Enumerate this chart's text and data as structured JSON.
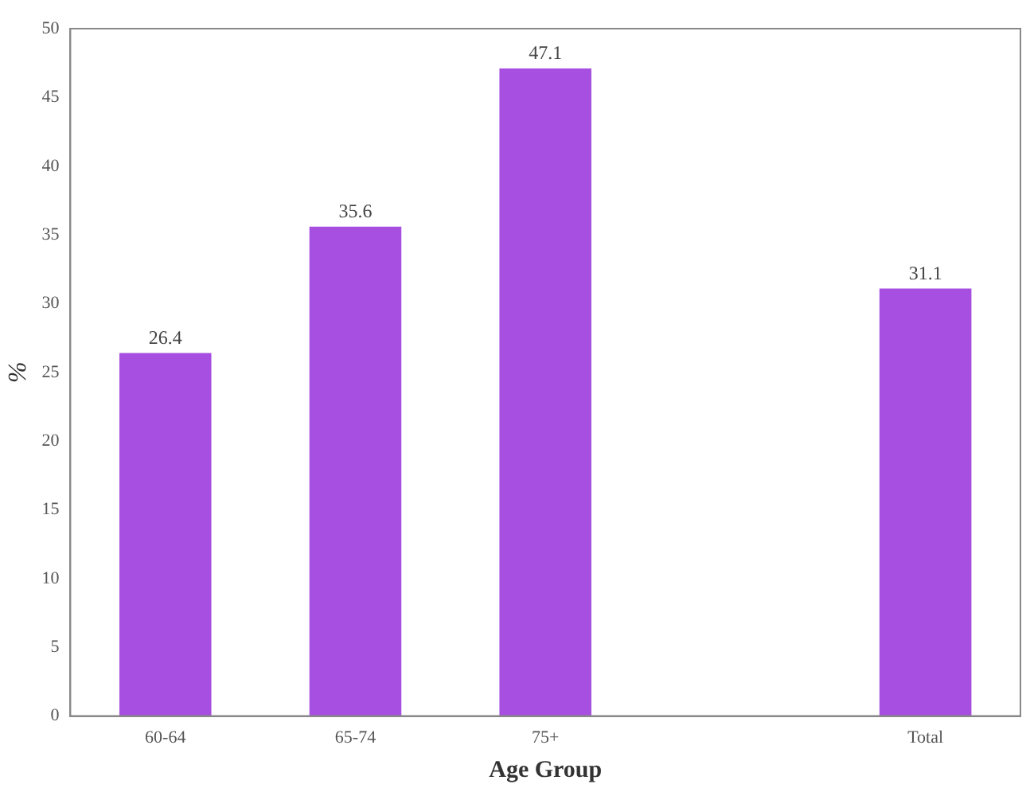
{
  "chart_data": {
    "type": "bar",
    "xlabel": "Age Group",
    "ylabel": "%",
    "categories": [
      "60-64",
      "65-74",
      "75+",
      null,
      "Total"
    ],
    "values": [
      26.4,
      35.6,
      47.1,
      null,
      31.1
    ],
    "color": "#a64fe0",
    "data_labels": true,
    "grid": false,
    "legend": false,
    "ylim": [
      0,
      50
    ],
    "yticks": [
      0,
      5,
      10,
      15,
      20,
      25,
      30,
      35,
      40,
      45,
      50
    ]
  }
}
